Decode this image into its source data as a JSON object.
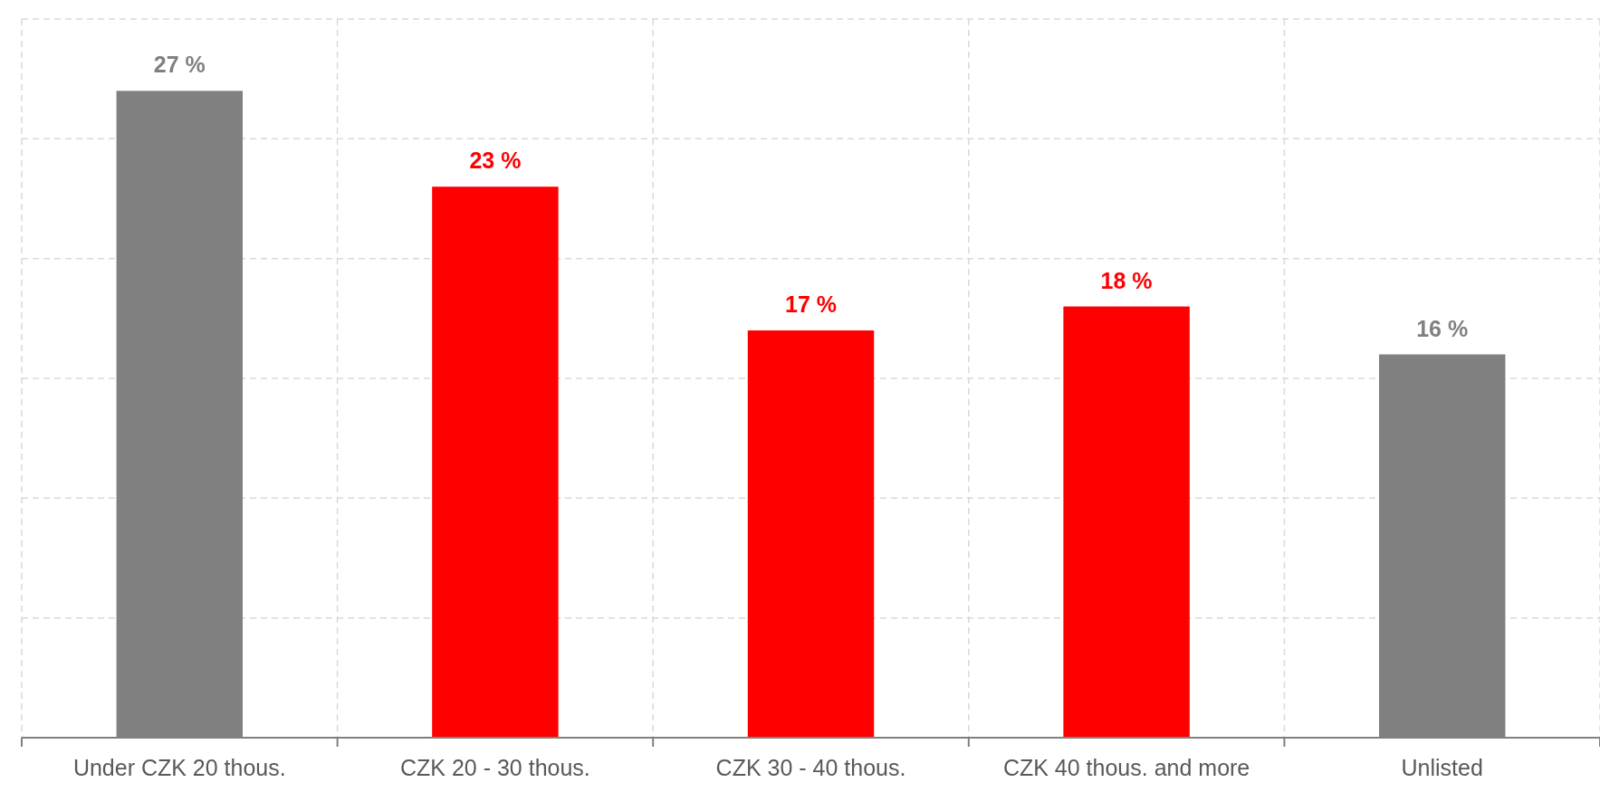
{
  "chart_data": {
    "type": "bar",
    "categories": [
      "Under CZK 20 thous.",
      "CZK 20 - 30 thous.",
      "CZK 30 - 40 thous.",
      "CZK 40 thous. and more",
      "Unlisted"
    ],
    "values": [
      27,
      23,
      17,
      18,
      16
    ],
    "colors": [
      "#808080",
      "#ff0000",
      "#ff0000",
      "#ff0000",
      "#808080"
    ],
    "ylim": [
      0,
      30
    ],
    "yticks": [
      {
        "value": 0,
        "label": null
      },
      {
        "value": 5,
        "label": null
      },
      {
        "value": 10,
        "label": null
      },
      {
        "value": 15,
        "label": null
      },
      {
        "value": 20,
        "label": null
      },
      {
        "value": 25,
        "label": null
      },
      {
        "value": 30,
        "label": null
      }
    ],
    "value_labels": [
      "27 %",
      "23 %",
      "17 %",
      "18 %",
      "16 %"
    ],
    "tick_labels": "x",
    "grid": true
  }
}
